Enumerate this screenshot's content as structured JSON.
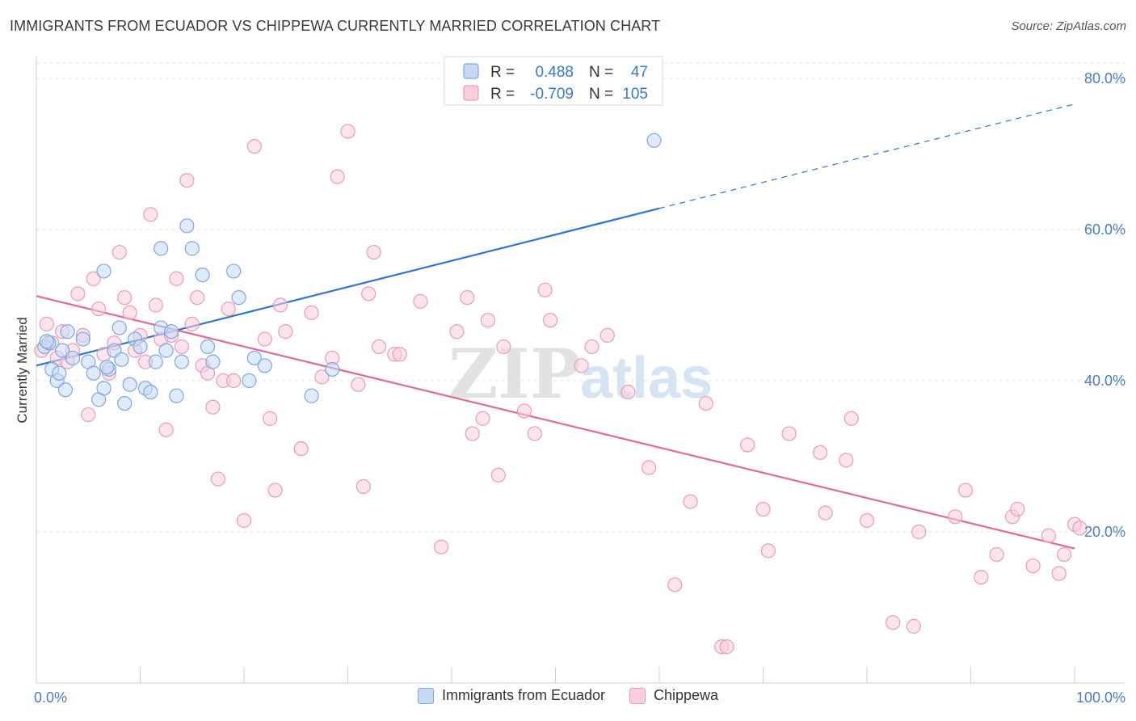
{
  "title": "IMMIGRANTS FROM ECUADOR VS CHIPPEWA CURRENTLY MARRIED CORRELATION CHART",
  "source": "Source: ZipAtlas.com",
  "chart_data": {
    "type": "scatter",
    "ylabel": "Currently Married",
    "xlim": [
      0,
      100
    ],
    "ylim": [
      0,
      85
    ],
    "x_tick_labels": [
      {
        "v": 0,
        "label": "0.0%"
      },
      {
        "v": 100,
        "label": "100.0%"
      }
    ],
    "y_ticks": [
      {
        "v": 20,
        "label": "20.0%"
      },
      {
        "v": 40,
        "label": "40.0%"
      },
      {
        "v": 60,
        "label": "60.0%"
      },
      {
        "v": 80,
        "label": "80.0%"
      }
    ],
    "grid": true,
    "watermark": {
      "zip": "ZIP",
      "atlas": "atlas"
    },
    "legend_stats": [
      {
        "r_label": "R =",
        "r_value": "0.488",
        "n_label": "N =",
        "n_value": "47"
      },
      {
        "r_label": "R =",
        "r_value": "-0.709",
        "n_label": "N =",
        "n_value": "105"
      }
    ],
    "series": [
      {
        "name": "Immigrants from Ecuador",
        "color": "#7ea6e0",
        "fill": "#c5d9f5",
        "trend_color": "#2f74d0",
        "trend": {
          "x0": 0,
          "y0": 42.0,
          "x1": 60,
          "y1": 62.8,
          "dash_to_x": 100,
          "dash_to_y": 76.6
        },
        "points": [
          [
            0.8,
            44.5
          ],
          [
            1.2,
            45.0
          ],
          [
            1.5,
            41.5
          ],
          [
            2.0,
            40.0
          ],
          [
            2.5,
            44.0
          ],
          [
            3.0,
            46.5
          ],
          [
            3.5,
            43.0
          ],
          [
            2.8,
            38.8
          ],
          [
            4.5,
            45.5
          ],
          [
            5.0,
            42.5
          ],
          [
            5.5,
            41.0
          ],
          [
            6.0,
            37.5
          ],
          [
            6.5,
            39.0
          ],
          [
            7.0,
            41.5
          ],
          [
            7.5,
            44.0
          ],
          [
            8.0,
            47.0
          ],
          [
            8.5,
            37.0
          ],
          [
            9.0,
            39.5
          ],
          [
            9.5,
            45.5
          ],
          [
            10.0,
            44.5
          ],
          [
            10.5,
            39.0
          ],
          [
            11.0,
            38.5
          ],
          [
            11.5,
            42.5
          ],
          [
            12.0,
            47.0
          ],
          [
            12.5,
            44.0
          ],
          [
            13.0,
            46.5
          ],
          [
            13.5,
            38.0
          ],
          [
            14.0,
            42.5
          ],
          [
            14.5,
            60.5
          ],
          [
            15.0,
            57.5
          ],
          [
            16.0,
            54.0
          ],
          [
            16.5,
            44.5
          ],
          [
            17.0,
            42.5
          ],
          [
            6.5,
            54.5
          ],
          [
            12.0,
            57.5
          ],
          [
            19.0,
            54.5
          ],
          [
            19.5,
            51.0
          ],
          [
            20.5,
            40.0
          ],
          [
            21.0,
            43.0
          ],
          [
            22.0,
            42.0
          ],
          [
            26.5,
            38.0
          ],
          [
            28.5,
            41.5
          ],
          [
            59.5,
            71.8
          ],
          [
            1.0,
            45.2
          ],
          [
            2.2,
            41.0
          ],
          [
            6.8,
            41.8
          ],
          [
            8.2,
            42.8
          ]
        ]
      },
      {
        "name": "Chippewa",
        "color": "#ee9ab8",
        "fill": "#f9cddd",
        "trend_color": "#e0689a",
        "trend": {
          "x0": 0,
          "y0": 51.2,
          "x1": 100,
          "y1": 17.8
        },
        "points": [
          [
            0.5,
            44.0
          ],
          [
            1.0,
            47.5
          ],
          [
            1.5,
            45.0
          ],
          [
            2.0,
            43.0
          ],
          [
            2.5,
            46.5
          ],
          [
            3.0,
            42.5
          ],
          [
            3.5,
            44.0
          ],
          [
            4.0,
            51.5
          ],
          [
            4.5,
            46.0
          ],
          [
            5.0,
            35.5
          ],
          [
            5.5,
            53.5
          ],
          [
            6.0,
            49.5
          ],
          [
            6.5,
            43.5
          ],
          [
            7.0,
            41.0
          ],
          [
            7.5,
            45.0
          ],
          [
            8.0,
            57.0
          ],
          [
            8.5,
            51.0
          ],
          [
            9.0,
            49.0
          ],
          [
            9.5,
            44.0
          ],
          [
            10.0,
            46.0
          ],
          [
            10.5,
            42.5
          ],
          [
            11.0,
            62.0
          ],
          [
            11.5,
            50.0
          ],
          [
            12.0,
            45.5
          ],
          [
            12.5,
            33.5
          ],
          [
            13.0,
            46.0
          ],
          [
            13.5,
            53.5
          ],
          [
            14.0,
            44.5
          ],
          [
            14.5,
            66.5
          ],
          [
            15.0,
            47.5
          ],
          [
            15.5,
            51.0
          ],
          [
            16.0,
            42.0
          ],
          [
            16.5,
            41.0
          ],
          [
            17.0,
            36.5
          ],
          [
            17.5,
            27.0
          ],
          [
            18.0,
            40.0
          ],
          [
            18.5,
            49.5
          ],
          [
            19.0,
            40.0
          ],
          [
            20.0,
            21.5
          ],
          [
            21.0,
            71.0
          ],
          [
            22.0,
            45.5
          ],
          [
            22.5,
            35.0
          ],
          [
            23.0,
            25.5
          ],
          [
            23.5,
            50.0
          ],
          [
            24.0,
            46.5
          ],
          [
            25.5,
            31.0
          ],
          [
            26.5,
            49.0
          ],
          [
            27.5,
            40.5
          ],
          [
            28.5,
            43.0
          ],
          [
            29.0,
            67.0
          ],
          [
            30.0,
            73.0
          ],
          [
            31.0,
            39.5
          ],
          [
            31.5,
            26.0
          ],
          [
            32.0,
            51.5
          ],
          [
            32.5,
            57.0
          ],
          [
            33.0,
            44.5
          ],
          [
            34.5,
            43.5
          ],
          [
            35.0,
            43.5
          ],
          [
            37.0,
            50.5
          ],
          [
            39.0,
            18.0
          ],
          [
            40.5,
            46.5
          ],
          [
            41.5,
            51.0
          ],
          [
            42.0,
            33.0
          ],
          [
            43.0,
            35.0
          ],
          [
            43.5,
            48.0
          ],
          [
            44.5,
            27.5
          ],
          [
            45.0,
            44.5
          ],
          [
            47.0,
            36.0
          ],
          [
            48.0,
            33.0
          ],
          [
            49.0,
            52.0
          ],
          [
            49.5,
            48.0
          ],
          [
            52.5,
            42.0
          ],
          [
            53.5,
            44.5
          ],
          [
            55.0,
            46.0
          ],
          [
            57.0,
            38.5
          ],
          [
            59.0,
            28.5
          ],
          [
            61.5,
            13.0
          ],
          [
            63.0,
            24.0
          ],
          [
            64.5,
            37.0
          ],
          [
            66.0,
            4.8
          ],
          [
            66.5,
            4.8
          ],
          [
            68.5,
            31.5
          ],
          [
            70.0,
            23.0
          ],
          [
            70.5,
            17.5
          ],
          [
            72.5,
            33.0
          ],
          [
            75.5,
            30.5
          ],
          [
            76.0,
            22.5
          ],
          [
            78.0,
            29.5
          ],
          [
            78.5,
            35.0
          ],
          [
            80.0,
            21.5
          ],
          [
            82.5,
            8.0
          ],
          [
            84.5,
            7.5
          ],
          [
            85.0,
            20.0
          ],
          [
            88.5,
            22.0
          ],
          [
            89.5,
            25.5
          ],
          [
            91.0,
            14.0
          ],
          [
            92.5,
            17.0
          ],
          [
            94.0,
            22.0
          ],
          [
            94.5,
            23.0
          ],
          [
            96.0,
            15.5
          ],
          [
            97.5,
            19.5
          ],
          [
            98.5,
            14.5
          ],
          [
            99.0,
            17.0
          ],
          [
            100.0,
            21.0
          ],
          [
            100.5,
            20.5
          ]
        ]
      }
    ]
  }
}
